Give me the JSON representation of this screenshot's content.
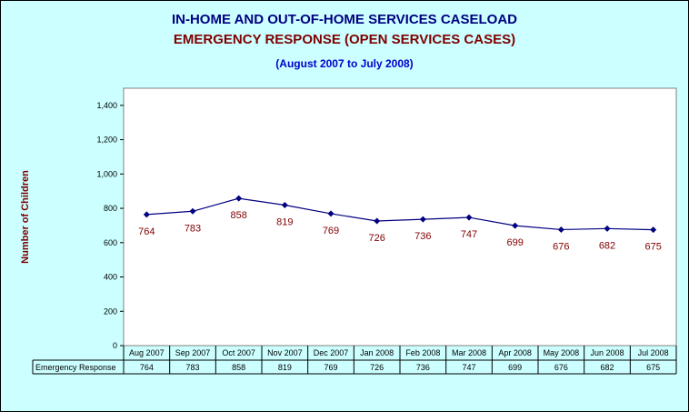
{
  "chart_data": {
    "type": "line",
    "title": "IN-HOME AND OUT-OF-HOME SERVICES CASELOAD",
    "subtitle": "EMERGENCY RESPONSE (OPEN SERVICES CASES)",
    "period": "(August 2007  to  July 2008)",
    "ylabel": "Number of Children",
    "ylim": [
      0,
      1500
    ],
    "yticks": [
      0,
      200,
      400,
      600,
      800,
      1000,
      1200,
      1400
    ],
    "ytick_labels": [
      "0",
      "200",
      "400",
      "600",
      "800",
      "1,000",
      "1,200",
      "1,400"
    ],
    "grid": false,
    "categories": [
      "Aug 2007",
      "Sep 2007",
      "Oct 2007",
      "Nov 2007",
      "Dec 2007",
      "Jan 2008",
      "Feb 2008",
      "Mar 2008",
      "Apr 2008",
      "May 2008",
      "Jun 2008",
      "Jul 2008"
    ],
    "series": [
      {
        "name": "Emergency Response",
        "values": [
          764,
          783,
          858,
          819,
          769,
          726,
          736,
          747,
          699,
          676,
          682,
          675
        ],
        "color": "#000080",
        "label_color": "#800000"
      }
    ],
    "data_table": true
  }
}
